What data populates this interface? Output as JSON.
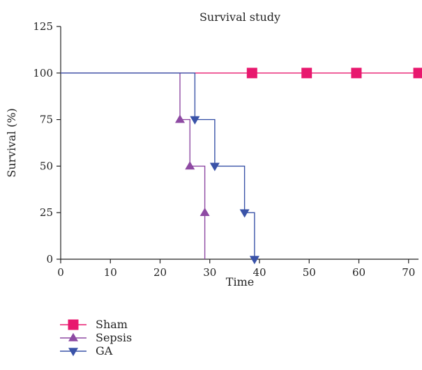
{
  "chart_data": {
    "type": "line",
    "subtype": "kaplan-meier-step",
    "title": "Survival study",
    "xlabel": "Time",
    "ylabel": "Survival (%)",
    "xlim": [
      0,
      72
    ],
    "ylim": [
      0,
      125
    ],
    "xticks": [
      0,
      10,
      20,
      30,
      40,
      50,
      60,
      70
    ],
    "yticks": [
      0,
      25,
      50,
      75,
      100,
      125
    ],
    "grid": false,
    "legend": "bottom-left",
    "series": [
      {
        "name": "Sham",
        "color": "#e8186e",
        "marker": "square",
        "steps": [
          [
            0,
            100
          ],
          [
            72,
            100
          ]
        ],
        "markers": [
          [
            38.5,
            100
          ],
          [
            49.5,
            100
          ],
          [
            59.5,
            100
          ],
          [
            72,
            100
          ]
        ]
      },
      {
        "name": "Sepsis",
        "color": "#8e4aa3",
        "marker": "triangle-up",
        "steps": [
          [
            0,
            100
          ],
          [
            24,
            100
          ],
          [
            24,
            75
          ],
          [
            26,
            75
          ],
          [
            26,
            50
          ],
          [
            29,
            50
          ],
          [
            29,
            0
          ]
        ],
        "markers": [
          [
            24,
            75
          ],
          [
            26,
            50
          ],
          [
            29,
            25
          ]
        ]
      },
      {
        "name": "GA",
        "color": "#3a53a8",
        "marker": "triangle-down",
        "steps": [
          [
            0,
            100
          ],
          [
            27,
            100
          ],
          [
            27,
            75
          ],
          [
            31,
            75
          ],
          [
            31,
            50
          ],
          [
            37,
            50
          ],
          [
            37,
            25
          ],
          [
            39,
            25
          ],
          [
            39,
            0
          ]
        ],
        "markers": [
          [
            27,
            75
          ],
          [
            31,
            50
          ],
          [
            37,
            25
          ],
          [
            39,
            0
          ]
        ]
      }
    ]
  }
}
